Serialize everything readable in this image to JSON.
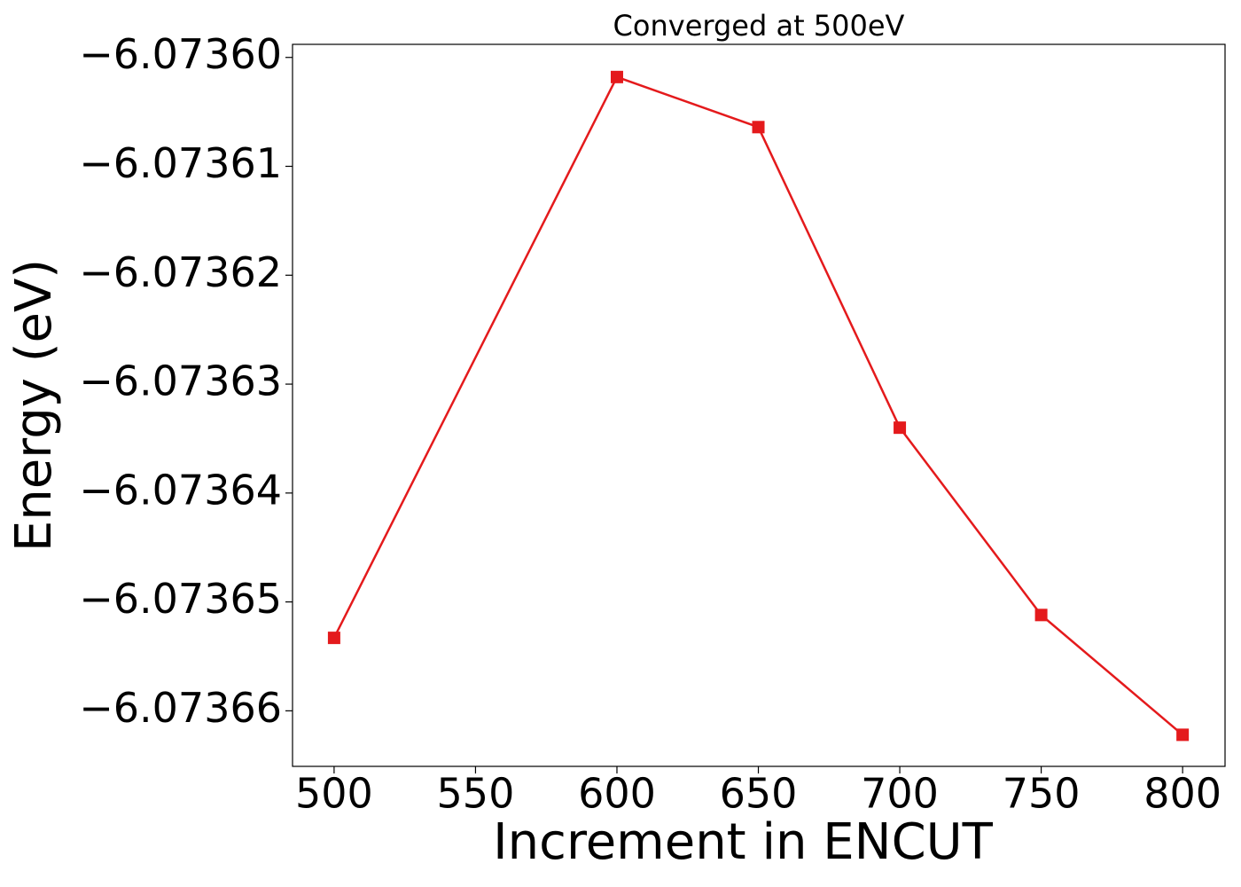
{
  "chart_data": {
    "type": "line",
    "title": "Converged at 500eV",
    "x_label": "Increment in ENCUT",
    "y_label": "Energy (eV)",
    "x": [
      500,
      600,
      650,
      700,
      750,
      800
    ],
    "values": [
      -6.0736533,
      -6.0736018,
      -6.0736064,
      -6.073634,
      -6.0736512,
      -6.0736622
    ],
    "color": "#e41a1c",
    "marker": "square",
    "xlim": [
      485.3,
      815
    ],
    "xticks": [
      500,
      550,
      600,
      650,
      700,
      750,
      800
    ],
    "ylim": [
      -6.0736651,
      -6.0735988
    ],
    "yticks": [
      {
        "value": -6.07366,
        "label": "−6.07366"
      },
      {
        "value": -6.07365,
        "label": "−6.07365"
      },
      {
        "value": -6.07364,
        "label": "−6.07364"
      },
      {
        "value": -6.07363,
        "label": "−6.07363"
      },
      {
        "value": -6.07362,
        "label": "−6.07362"
      },
      {
        "value": -6.07361,
        "label": "−6.07361"
      },
      {
        "value": -6.0736,
        "label": "−6.07360"
      }
    ],
    "grid": false
  }
}
